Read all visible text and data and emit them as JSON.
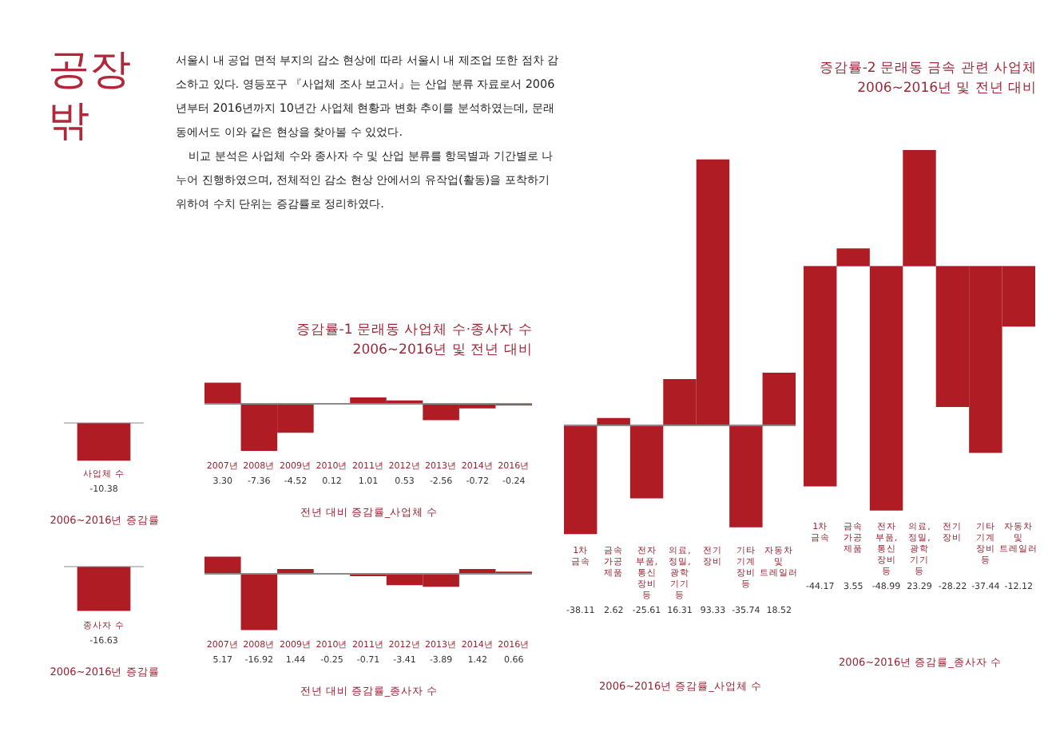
{
  "chart_data": [
    {
      "type": "other",
      "title": "공장 밖",
      "annotations": [
        "서울시 내 공업 면적 부지의 감소 현상에 따라 서울시 내 제조업 또한 점차 감소하고 있다. 영등포구 『사업체 조사 보고서』는 산업 분류 자료로서 2006년부터 2016년까지 10년간 사업체 현황과 변화 추이를 분석하였는데, 문래동에서도 이와 같은 현상을 찾아볼 수 있었다.",
        "비교 분석은 사업체 수와 종사자 수 및 산업 분류를 항목별과 기간별로 나누어 진행하였으며, 전체적인 감소 현상 안에서의 유작업(활동)을 포착하기 위하여 수치 단위는 증감률로 정리하였다."
      ]
    },
    {
      "type": "bar",
      "xlabel": "2006~2016년 증감률",
      "categories": [
        "사업체 수"
      ],
      "values": [
        -10.38
      ],
      "value_labels": [
        "-10.38"
      ],
      "color": "#b01c24"
    },
    {
      "type": "bar",
      "title": "증감률-1 문래동 사업체 수·종사자 수",
      "subtitle": "2006~2016년 및 전년 대비",
      "xlabel": "전년 대비 증감률_사업체 수",
      "categories": [
        "2007년",
        "2008년",
        "2009년",
        "2010년",
        "2011년",
        "2012년",
        "2013년",
        "2014년",
        "2016년"
      ],
      "values": [
        3.3,
        -7.36,
        -4.52,
        0.12,
        1.01,
        0.53,
        -2.56,
        -0.72,
        -0.24
      ],
      "value_labels": [
        "3.30",
        "-7.36",
        "-4.52",
        "0.12",
        "1.01",
        "0.53",
        "-2.56",
        "-0.72",
        "-0.24"
      ],
      "color": "#b01c24"
    },
    {
      "type": "bar",
      "xlabel": "2006~2016년 증감률",
      "categories": [
        "종사자 수"
      ],
      "values": [
        -16.63
      ],
      "value_labels": [
        "-16.63"
      ],
      "color": "#b01c24"
    },
    {
      "type": "bar",
      "xlabel": "전년 대비 증감률_종사자 수",
      "categories": [
        "2007년",
        "2008년",
        "2009년",
        "2010년",
        "2011년",
        "2012년",
        "2013년",
        "2014년",
        "2016년"
      ],
      "values": [
        5.17,
        -16.92,
        1.44,
        -0.25,
        -0.71,
        -3.41,
        -3.89,
        1.42,
        0.66
      ],
      "value_labels": [
        "5.17",
        "-16.92",
        "1.44",
        "-0.25",
        "-0.71",
        "-3.41",
        "-3.89",
        "1.42",
        "0.66"
      ],
      "color": "#b01c24"
    },
    {
      "type": "bar",
      "xlabel": "2006~2016년 증감률_사업체 수",
      "categories": [
        "1차 금속",
        "금속 가공 제품",
        "전자 부품, 통신 장비 등",
        "의료, 정밀, 광학 기기 등",
        "전기 장비",
        "기타 기계 장비 등",
        "자동차 및 트레일러"
      ],
      "values": [
        -38.11,
        2.62,
        -25.61,
        16.31,
        93.33,
        -35.74,
        18.52
      ],
      "value_labels": [
        "-38.11",
        "2.62",
        "-25.61",
        "16.31",
        "93.33",
        "-35.74",
        "18.52"
      ],
      "color": "#b01c24"
    },
    {
      "type": "bar",
      "title": "증감률-2 문래동 금속 관련 사업체",
      "subtitle": "2006~2016년 및 전년 대비",
      "xlabel": "2006~2016년 증감률_종사자 수",
      "categories": [
        "1차 금속",
        "금속 가공 제품",
        "전자 부품, 통신 장비 등",
        "의료, 정밀, 광학 기기 등",
        "전기 장비",
        "기타 기계 장비 등",
        "자동차 및 트레일러"
      ],
      "values": [
        -44.17,
        3.55,
        -48.99,
        23.29,
        -28.22,
        -37.44,
        -12.12
      ],
      "value_labels": [
        "-44.17",
        "3.55",
        "-48.99",
        "23.29",
        "-28.22",
        "-37.44",
        "-12.12"
      ],
      "color": "#b01c24"
    }
  ]
}
